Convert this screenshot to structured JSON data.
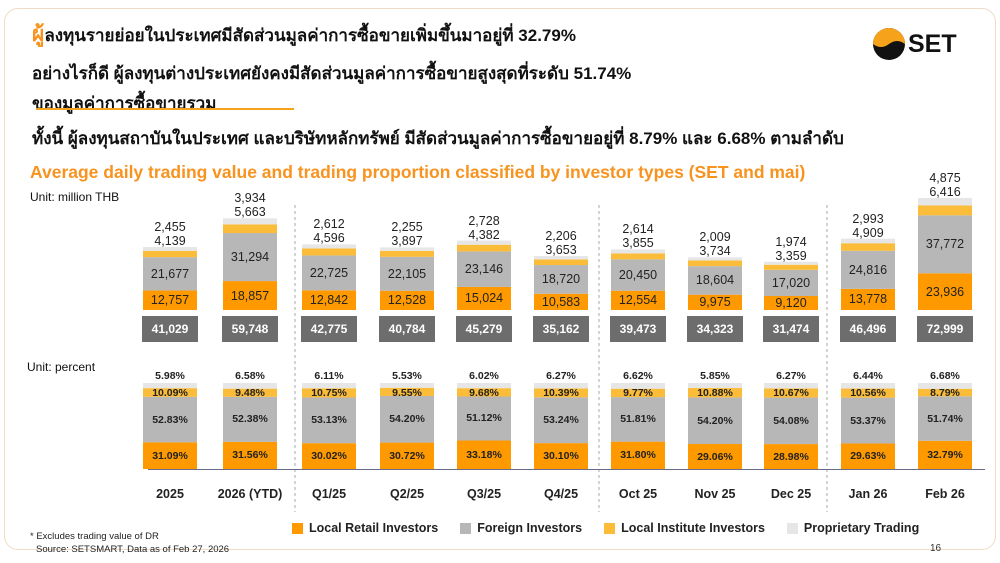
{
  "header": {
    "line1_first": "ผู้",
    "line1_rest": "ลงทุนรายย่อยในประเทศมีสัดส่วนมูลค่าการซื้อขายเพิ่มขึ้นมาอยู่ที่ 32.79%",
    "line2": "อย่างไรก็ดี ผู้ลงทุนต่างประเทศยังคงมีสัดส่วนมูลค่าการซื้อขายสูงสุดที่ระดับ 51.74%",
    "line3": "ของมูลค่าการซื้อขายรวม",
    "line4": "ทั้งนี้ ผู้ลงทุนสถาบันในประเทศ และบริษัทหลักทรัพย์ มีสัดส่วนมูลค่าการซื้อขายอยู่ที่ 8.79% และ 6.68% ตามลำดับ"
  },
  "logo": {
    "text": "SET"
  },
  "footer": {
    "note": "* Excludes trading value of DR",
    "source": "Source: SETSMART, Data as of Feb 27, 2026",
    "page": "16"
  },
  "colors": {
    "retail": "#ff9900",
    "foreign": "#b7b7b7",
    "institute": "#fbbc3a",
    "prop": "#e6e6e6",
    "total_box": "#6d6d6d"
  },
  "chart_data": [
    {
      "type": "bar",
      "stacked": true,
      "title": "Average daily trading value and trading proportion classified by investor types (SET and mai)",
      "ylabel": "Unit: million THB",
      "categories": [
        "2025",
        "2026 (YTD)",
        "Q1/25",
        "Q2/25",
        "Q3/25",
        "Q4/25",
        "Oct 25",
        "Nov 25",
        "Dec 25",
        "Jan 26",
        "Feb 26"
      ],
      "series": [
        {
          "name": "Local Retail Investors",
          "values": [
            "12,757",
            "18,857",
            "12,842",
            "12,528",
            "15,024",
            "10,583",
            "12,554",
            "9,975",
            "9,120",
            "13,778",
            "23,936"
          ]
        },
        {
          "name": "Foreign Investors",
          "values": [
            "21,677",
            "31,294",
            "22,725",
            "22,105",
            "23,146",
            "18,720",
            "20,450",
            "18,604",
            "17,020",
            "24,816",
            "37,772"
          ]
        },
        {
          "name": "Local Institute Investors",
          "values": [
            "4,139",
            "5,663",
            "4,596",
            "3,897",
            "4,382",
            "3,653",
            "3,855",
            "3,734",
            "3,359",
            "4,909",
            "6,416"
          ]
        },
        {
          "name": "Proprietary Trading",
          "values": [
            "2,455",
            "3,934",
            "2,612",
            "2,255",
            "2,728",
            "2,206",
            "2,614",
            "2,009",
            "1,974",
            "2,993",
            "4,875"
          ]
        }
      ],
      "totals": [
        "41,029",
        "59,748",
        "42,775",
        "40,784",
        "45,279",
        "35,162",
        "39,473",
        "34,323",
        "31,474",
        "46,496",
        "72,999"
      ]
    },
    {
      "type": "bar",
      "stacked": true,
      "ylabel": "Unit: percent",
      "categories": [
        "2025",
        "2026 (YTD)",
        "Q1/25",
        "Q2/25",
        "Q3/25",
        "Q4/25",
        "Oct 25",
        "Nov 25",
        "Dec 25",
        "Jan 26",
        "Feb 26"
      ],
      "series": [
        {
          "name": "Local Retail Investors",
          "values": [
            "31.09%",
            "31.56%",
            "30.02%",
            "30.72%",
            "33.18%",
            "30.10%",
            "31.80%",
            "29.06%",
            "28.98%",
            "29.63%",
            "32.79%"
          ]
        },
        {
          "name": "Foreign Investors",
          "values": [
            "52.83%",
            "52.38%",
            "53.13%",
            "54.20%",
            "51.12%",
            "53.24%",
            "51.81%",
            "54.20%",
            "54.08%",
            "53.37%",
            "51.74%"
          ]
        },
        {
          "name": "Local Institute Investors",
          "values": [
            "10.09%",
            "9.48%",
            "10.75%",
            "9.55%",
            "9.68%",
            "10.39%",
            "9.77%",
            "10.88%",
            "10.67%",
            "10.56%",
            "8.79%"
          ]
        },
        {
          "name": "Proprietary Trading",
          "values": [
            "5.98%",
            "6.58%",
            "6.11%",
            "5.53%",
            "6.02%",
            "6.27%",
            "6.62%",
            "5.85%",
            "6.27%",
            "6.44%",
            "6.68%"
          ]
        }
      ]
    }
  ]
}
